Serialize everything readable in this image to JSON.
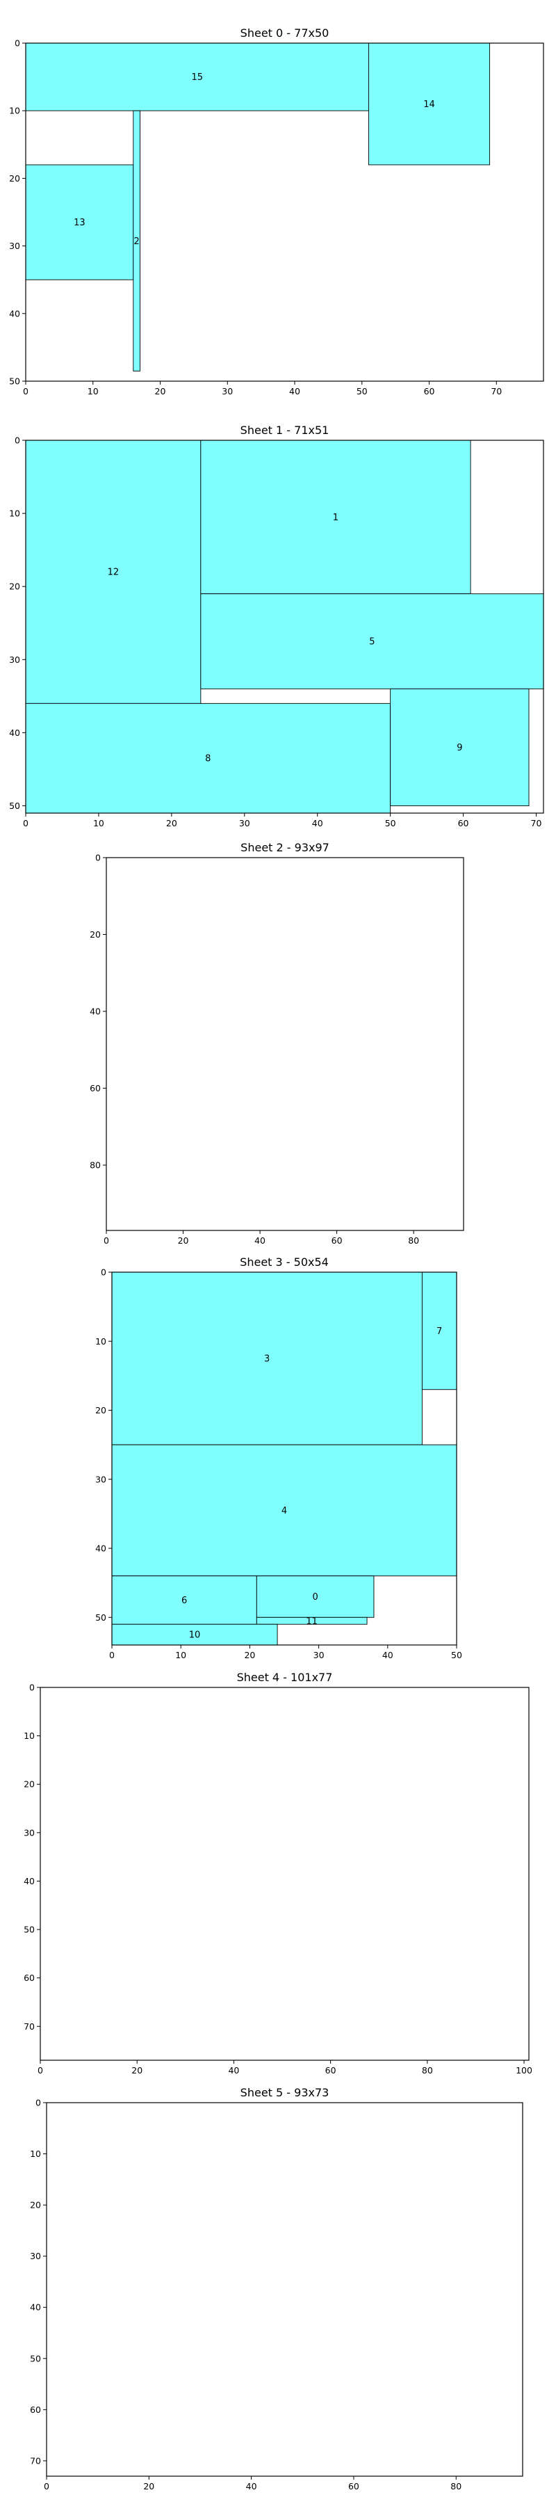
{
  "colors": {
    "piece_fill": "#80ffff",
    "piece_stroke": "#000000",
    "background": "#ffffff"
  },
  "chart_data": [
    {
      "type": "rectangles",
      "title": "Sheet 0 - 77x50",
      "xlim": [
        0,
        77
      ],
      "ylim": [
        50,
        0
      ],
      "xticks": [
        0,
        10,
        20,
        30,
        40,
        50,
        60,
        70
      ],
      "yticks": [
        0,
        10,
        20,
        30,
        40,
        50
      ],
      "rects": [
        {
          "label": "15",
          "x": 0,
          "y": 0,
          "w": 51,
          "h": 10
        },
        {
          "label": "14",
          "x": 51,
          "y": 0,
          "w": 18,
          "h": 18
        },
        {
          "label": "13",
          "x": 0,
          "y": 18,
          "w": 16,
          "h": 17
        },
        {
          "label": "2",
          "x": 16,
          "y": 10,
          "w": 1,
          "h": 38.5
        }
      ]
    },
    {
      "type": "rectangles",
      "title": "Sheet 1 - 71x51",
      "xlim": [
        0,
        71
      ],
      "ylim": [
        51,
        0
      ],
      "xticks": [
        0,
        10,
        20,
        30,
        40,
        50,
        60,
        70
      ],
      "yticks": [
        0,
        10,
        20,
        30,
        40,
        50
      ],
      "rects": [
        {
          "label": "12",
          "x": 0,
          "y": 0,
          "w": 24,
          "h": 36
        },
        {
          "label": "1",
          "x": 24,
          "y": 0,
          "w": 37,
          "h": 21
        },
        {
          "label": "5",
          "x": 24,
          "y": 21,
          "w": 47,
          "h": 13
        },
        {
          "label": "8",
          "x": 0,
          "y": 36,
          "w": 50,
          "h": 15
        },
        {
          "label": "9",
          "x": 50,
          "y": 34,
          "w": 19,
          "h": 16
        }
      ]
    },
    {
      "type": "rectangles",
      "title": "Sheet 2 - 93x97",
      "xlim": [
        0,
        93
      ],
      "ylim": [
        97,
        0
      ],
      "xticks": [
        0,
        20,
        40,
        60,
        80
      ],
      "yticks": [
        0,
        20,
        40,
        60,
        80
      ],
      "rects": []
    },
    {
      "type": "rectangles",
      "title": "Sheet 3 - 50x54",
      "xlim": [
        0,
        50
      ],
      "ylim": [
        54,
        0
      ],
      "xticks": [
        0,
        10,
        20,
        30,
        40,
        50
      ],
      "yticks": [
        0,
        10,
        20,
        30,
        40,
        50
      ],
      "rects": [
        {
          "label": "3",
          "x": 0,
          "y": 0,
          "w": 45,
          "h": 25
        },
        {
          "label": "7",
          "x": 45,
          "y": 0,
          "w": 5,
          "h": 17
        },
        {
          "label": "4",
          "x": 0,
          "y": 25,
          "w": 50,
          "h": 19
        },
        {
          "label": "6",
          "x": 0,
          "y": 44,
          "w": 21,
          "h": 7
        },
        {
          "label": "0",
          "x": 21,
          "y": 44,
          "w": 17,
          "h": 6
        },
        {
          "label": "11",
          "x": 21,
          "y": 50,
          "w": 16,
          "h": 1
        },
        {
          "label": "10",
          "x": 0,
          "y": 51,
          "w": 24,
          "h": 3
        }
      ]
    },
    {
      "type": "rectangles",
      "title": "Sheet 4 - 101x77",
      "xlim": [
        0,
        101
      ],
      "ylim": [
        77,
        0
      ],
      "xticks": [
        0,
        20,
        40,
        60,
        80,
        100
      ],
      "yticks": [
        0,
        10,
        20,
        30,
        40,
        50,
        60,
        70
      ],
      "rects": []
    },
    {
      "type": "rectangles",
      "title": "Sheet 5 - 93x73",
      "xlim": [
        0,
        93
      ],
      "ylim": [
        73,
        0
      ],
      "xticks": [
        0,
        20,
        40,
        60,
        80
      ],
      "yticks": [
        0,
        10,
        20,
        30,
        40,
        50,
        60,
        70
      ],
      "rects": []
    }
  ]
}
